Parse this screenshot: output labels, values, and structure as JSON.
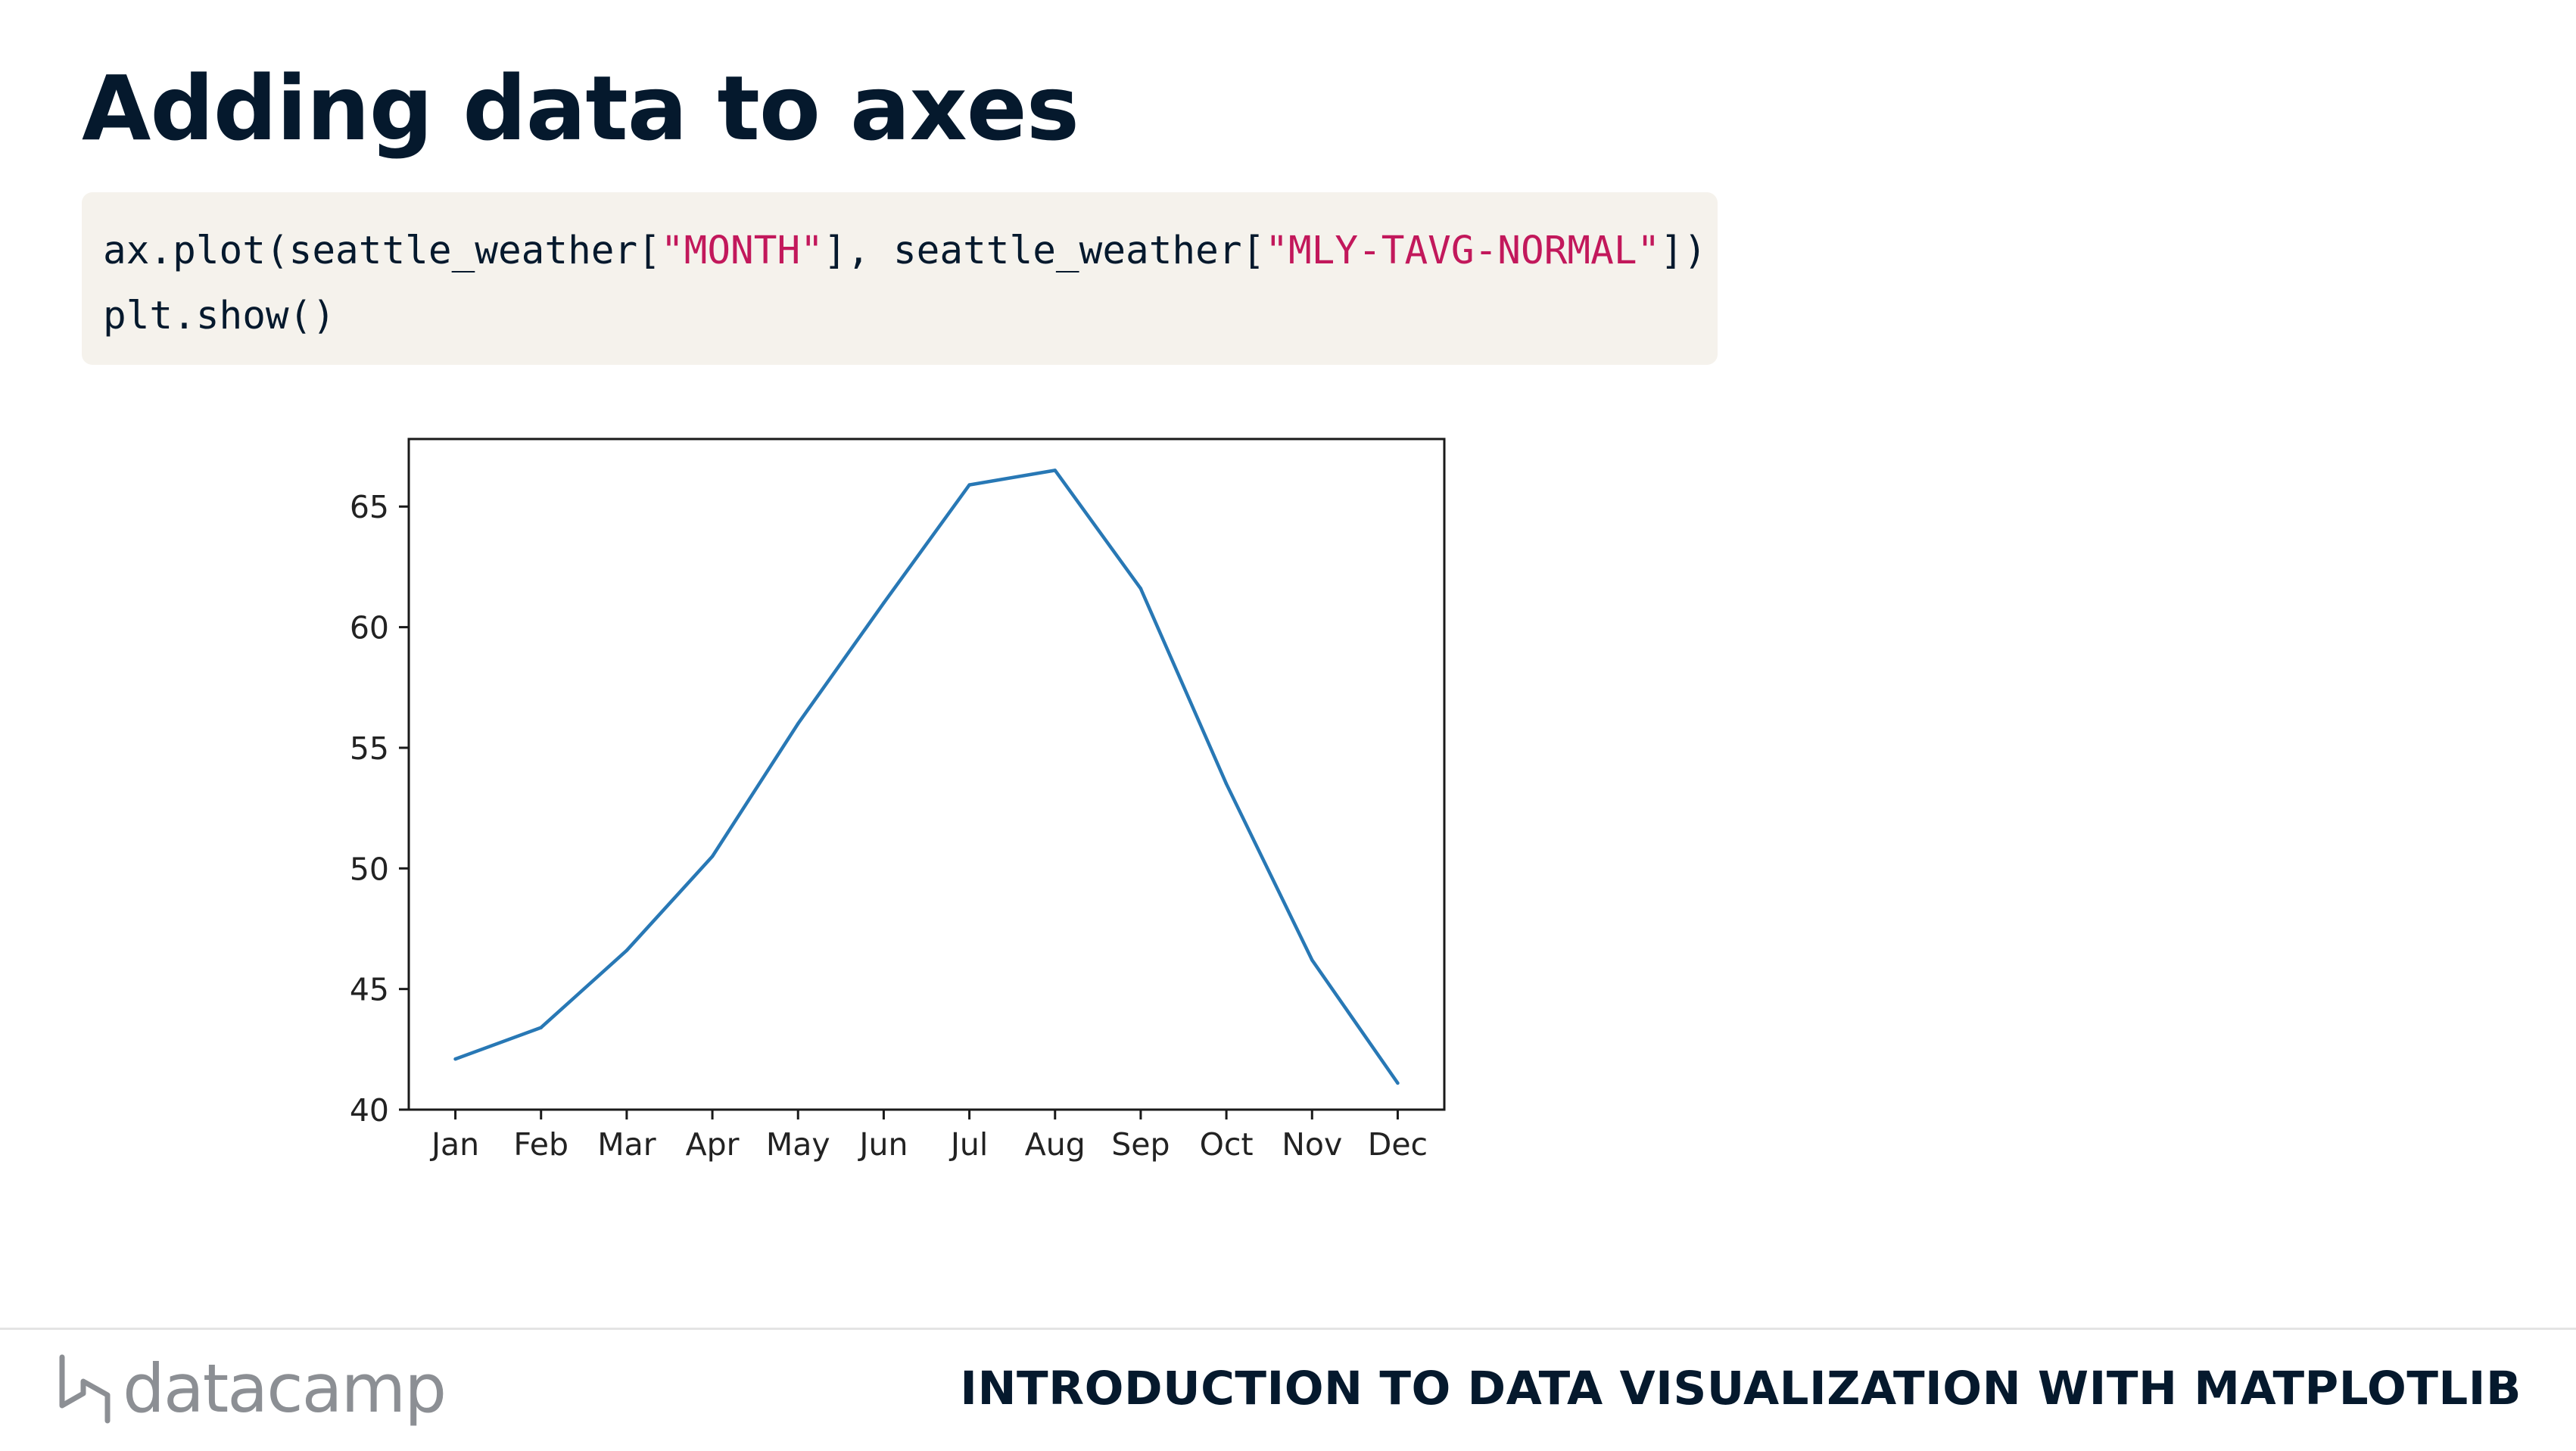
{
  "slide": {
    "title": "Adding data to axes"
  },
  "code": {
    "line1_a": "ax.plot(seattle_weather[",
    "line1_s1": "\"MONTH\"",
    "line1_b": "], seattle_weather[",
    "line1_s2": "\"MLY-TAVG-NORMAL\"",
    "line1_c": "])",
    "line2": "plt.show()",
    "string_color": "#c2185b"
  },
  "chart_data": {
    "type": "line",
    "categories": [
      "Jan",
      "Feb",
      "Mar",
      "Apr",
      "May",
      "Jun",
      "Jul",
      "Aug",
      "Sep",
      "Oct",
      "Nov",
      "Dec"
    ],
    "series": [
      {
        "values": [
          42.1,
          43.4,
          46.6,
          50.5,
          56.0,
          61.0,
          65.9,
          66.5,
          61.6,
          53.5,
          46.2,
          41.1
        ],
        "color": "#2878b5"
      }
    ],
    "ylim": [
      40,
      67.8
    ],
    "yticks": [
      40,
      45,
      50,
      55,
      60,
      65
    ],
    "xlabel": "",
    "ylabel": "",
    "grid": false,
    "legend": false
  },
  "footer": {
    "brand": "datacamp",
    "course_title": "INTRODUCTION TO DATA VISUALIZATION WITH MATPLOTLIB"
  }
}
